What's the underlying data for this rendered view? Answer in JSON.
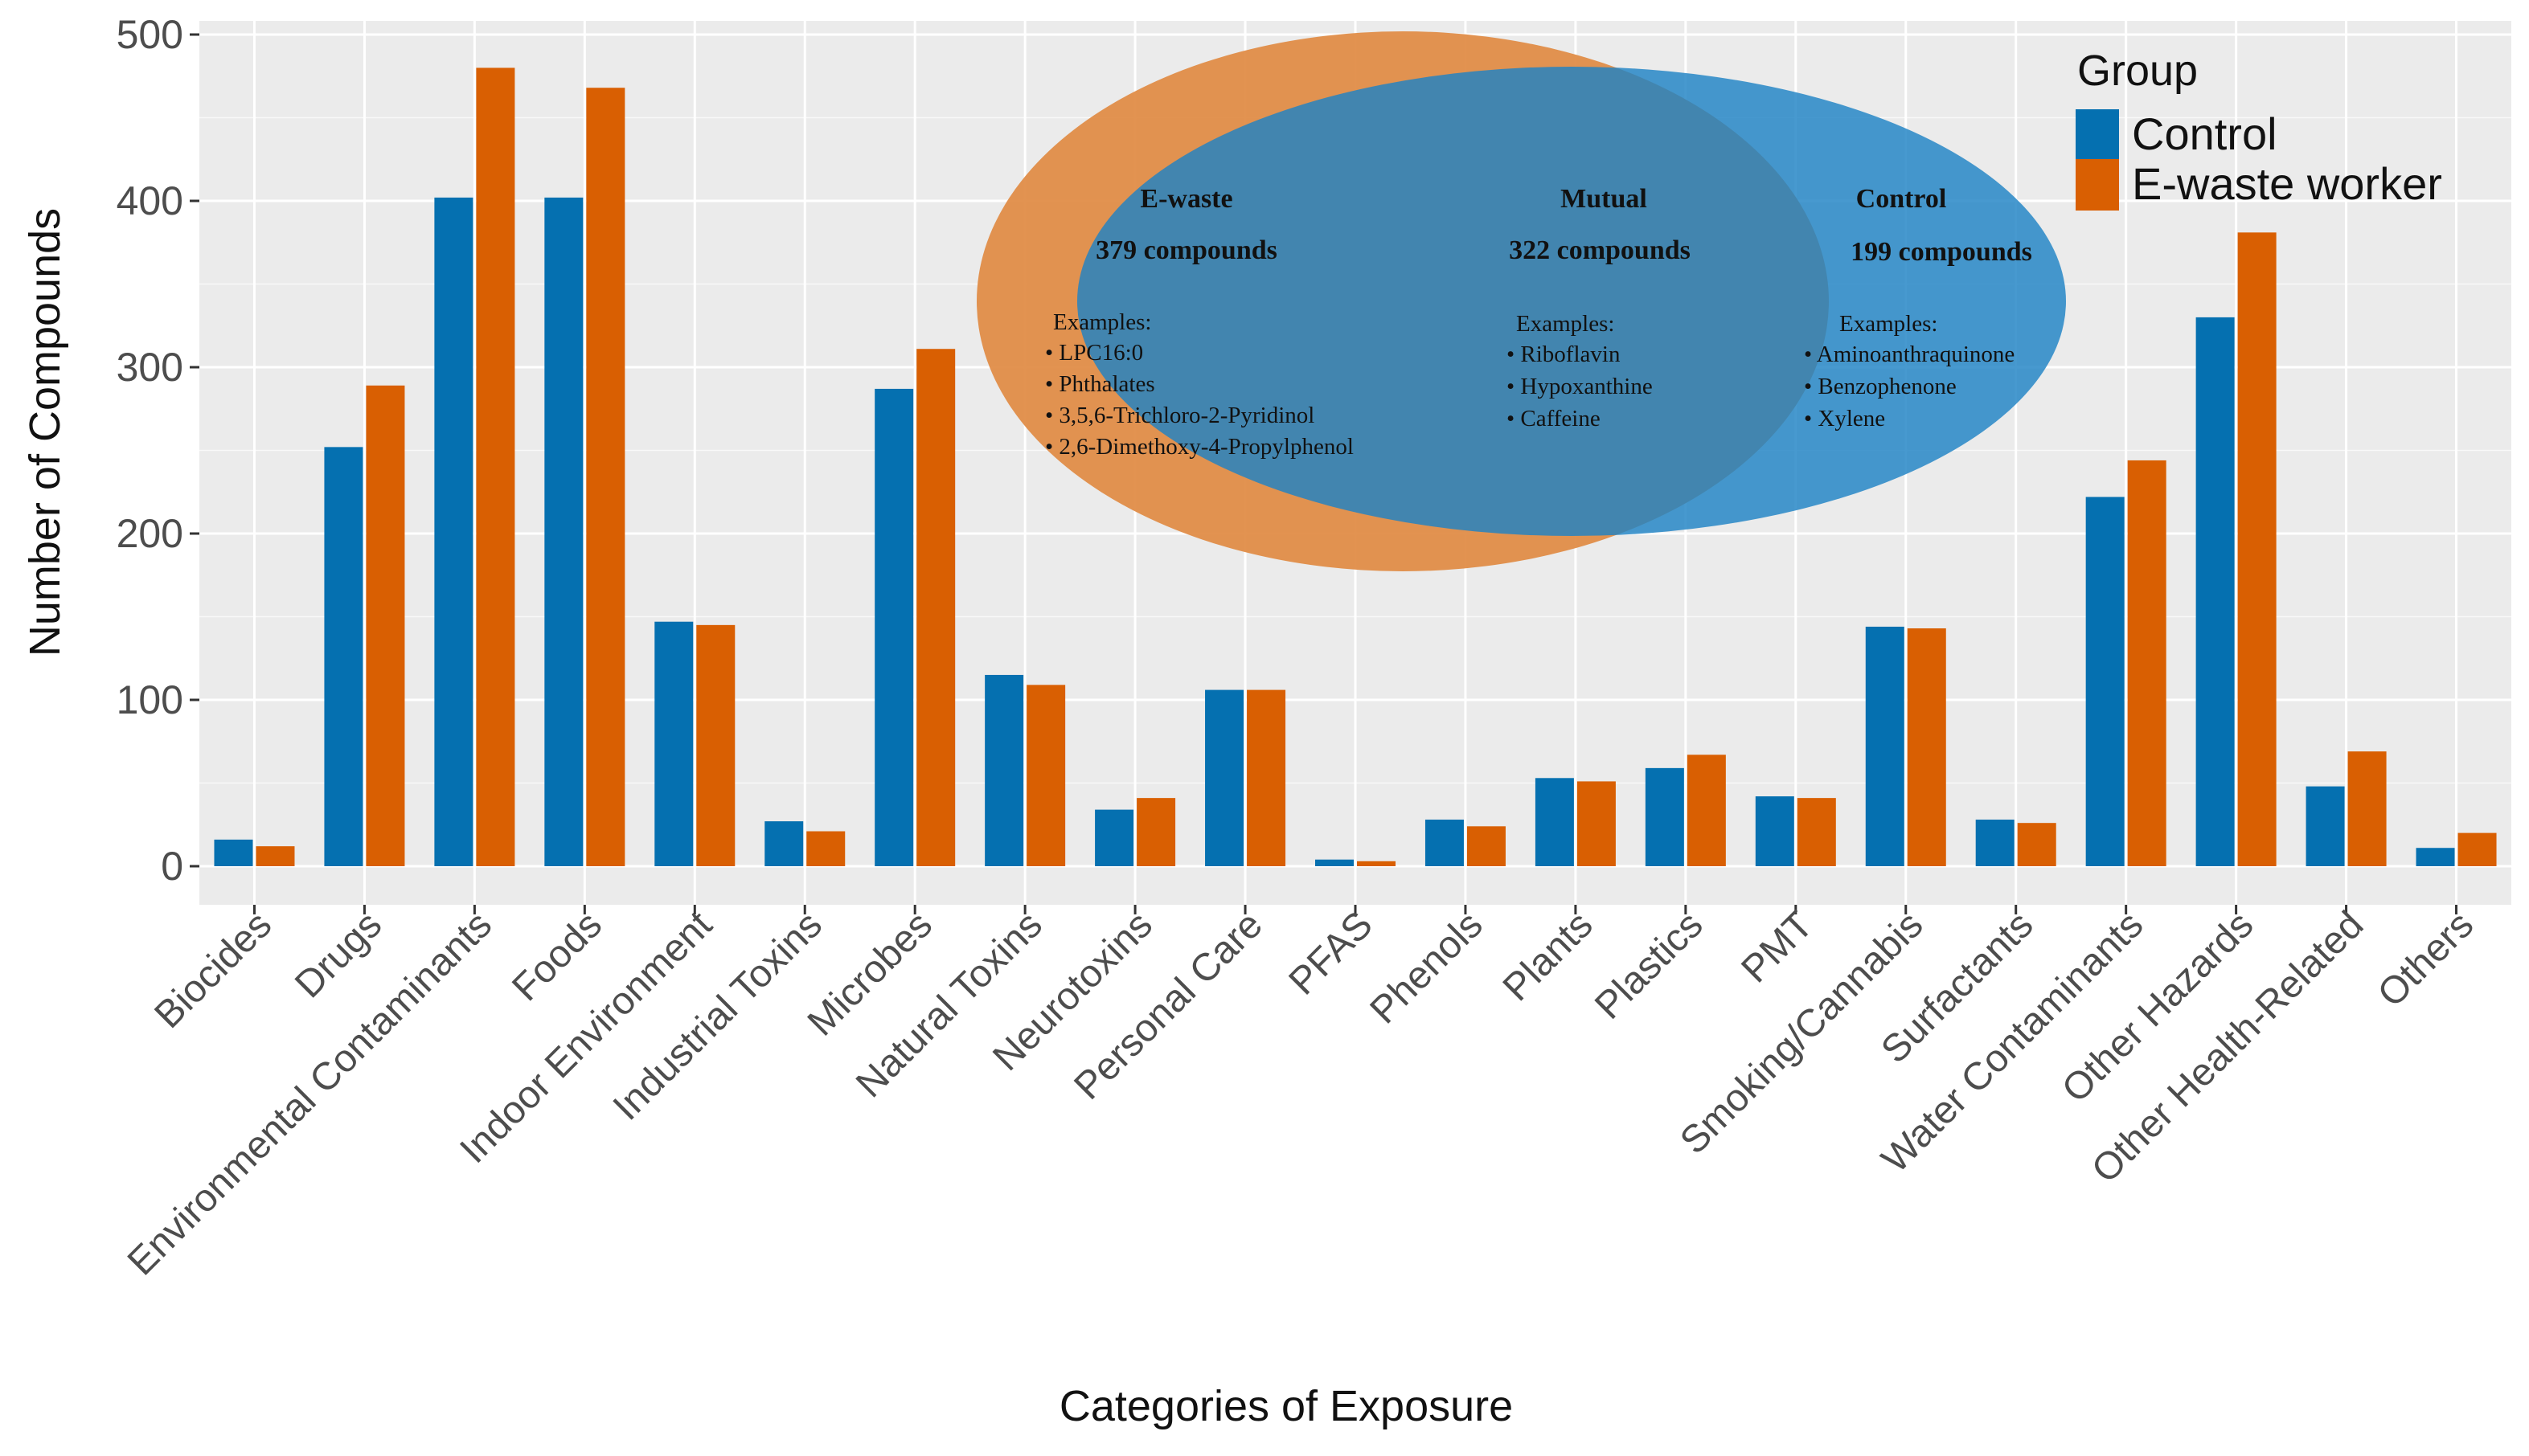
{
  "colors": {
    "control": "#0570B0",
    "ewaste": "#D95F02",
    "panel": "#EBEBEB",
    "grid_major": "#FFFFFF",
    "venn_ewaste": "#E08A42",
    "venn_control": "#1E82C5",
    "venn_mutual": "#637F87"
  },
  "chart_data": {
    "type": "bar",
    "xlabel": "Categories of Exposure",
    "ylabel": "Number of Compounds",
    "ylim": [
      -25,
      510
    ],
    "yticks": [
      0,
      100,
      200,
      300,
      400,
      500
    ],
    "categories": [
      "Biocides",
      "Drugs",
      "Environmental Contaminants",
      "Foods",
      "Indoor Environment",
      "Industrial Toxins",
      "Microbes",
      "Natural Toxins",
      "Neurotoxins",
      "Personal Care",
      "PFAS",
      "Phenols",
      "Plants",
      "Plastics",
      "PMT",
      "Smoking/Cannabis",
      "Surfactants",
      "Water Contaminants",
      "Other Hazards",
      "Other Health-Related",
      "Others"
    ],
    "series": [
      {
        "name": "Control",
        "values": [
          16,
          252,
          402,
          402,
          147,
          27,
          287,
          115,
          34,
          106,
          4,
          28,
          53,
          59,
          42,
          144,
          28,
          222,
          330,
          48,
          11
        ]
      },
      {
        "name": "E-waste worker",
        "values": [
          12,
          289,
          480,
          468,
          145,
          21,
          311,
          109,
          41,
          106,
          3,
          24,
          51,
          67,
          41,
          143,
          26,
          244,
          381,
          69,
          20
        ]
      }
    ],
    "legend": {
      "title": "Group",
      "position": "top-right"
    },
    "grid": true
  },
  "venn": {
    "ewaste": {
      "title": "E-waste",
      "count": "379 compounds",
      "examples_label": "Examples:",
      "examples": [
        "• LPC16:0",
        "• Phthalates",
        "• 3,5,6-Trichloro-2-Pyridinol",
        "• 2,6-Dimethoxy-4-Propylphenol"
      ]
    },
    "mutual": {
      "title": "Mutual",
      "count": "322 compounds",
      "examples_label": "Examples:",
      "examples": [
        "• Riboflavin",
        "• Hypoxanthine",
        "• Caffeine"
      ]
    },
    "control": {
      "title": "Control",
      "count": "199 compounds",
      "examples_label": "Examples:",
      "examples": [
        "• Aminoanthraquinone",
        "• Benzophenone",
        "• Xylene"
      ]
    }
  }
}
